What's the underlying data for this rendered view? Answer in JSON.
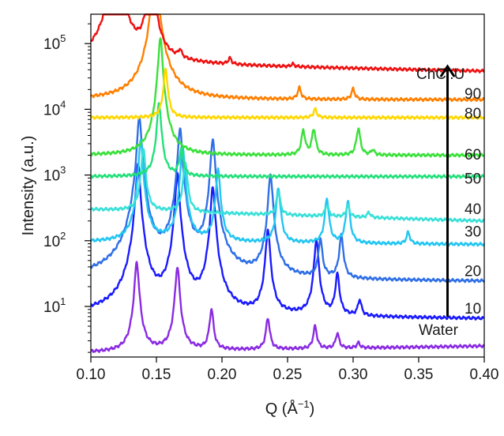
{
  "chart_data": {
    "type": "line",
    "title": "",
    "xlabel_prefix": "Q (Å",
    "xlabel_exp": "−1",
    "xlabel_suffix": ")",
    "ylabel": "Intensity (a.u.)",
    "xscale": "linear",
    "yscale": "log",
    "xlim": [
      0.1,
      0.4
    ],
    "ylim": [
      1.7,
      280000
    ],
    "grid": false,
    "x_ticks": [
      0.1,
      0.15,
      0.2,
      0.25,
      0.3,
      0.35,
      0.4
    ],
    "x_tick_labels": [
      "0.10",
      "0.15",
      "0.20",
      "0.25",
      "0.30",
      "0.35",
      "0.40"
    ],
    "y_ticks": [
      10,
      100,
      1000,
      10000,
      100000
    ],
    "y_tick_labels": [
      {
        "base": "10",
        "exp": "1"
      },
      {
        "base": "10",
        "exp": "2"
      },
      {
        "base": "10",
        "exp": "3"
      },
      {
        "base": "10",
        "exp": "4"
      },
      {
        "base": "10",
        "exp": "5"
      }
    ],
    "series_title": "ChCl:U",
    "arrow": {
      "x": 0.372,
      "from_y": 7,
      "to_y": 45000
    },
    "series": [
      {
        "label": "Water",
        "color": "#8a2be2",
        "label_y": 4.5,
        "x0": 0.1,
        "y0": 2.0,
        "x1": 0.4,
        "y1": 2.5,
        "peaks": [
          [
            0.135,
            22
          ],
          [
            0.166,
            18
          ],
          [
            0.192,
            3.2
          ],
          [
            0.235,
            2.0
          ],
          [
            0.271,
            1.2
          ],
          [
            0.288,
            0.7
          ],
          [
            0.304,
            0.2
          ]
        ]
      },
      {
        "label": "10",
        "color": "#1a1aff",
        "label_y": 9.5,
        "x0": 0.1,
        "y0": 7.5,
        "x1": 0.4,
        "y1": 6.5,
        "peaks": [
          [
            0.136,
            200
          ],
          [
            0.166,
            140
          ],
          [
            0.193,
            90
          ],
          [
            0.235,
            20
          ],
          [
            0.272,
            14
          ],
          [
            0.288,
            3.5
          ],
          [
            0.305,
            0.8
          ]
        ]
      },
      {
        "label": "20",
        "color": "#2f6fe6",
        "label_y": 35,
        "x0": 0.1,
        "y0": 26,
        "x1": 0.4,
        "y1": 24,
        "peaks": [
          [
            0.137,
            300
          ],
          [
            0.168,
            200
          ],
          [
            0.193,
            140
          ],
          [
            0.237,
            40
          ],
          [
            0.275,
            3.2
          ],
          [
            0.291,
            3.8
          ]
        ]
      },
      {
        "label": "30",
        "color": "#22c6f2",
        "label_y": 140,
        "x0": 0.1,
        "y0": 95,
        "x1": 0.4,
        "y1": 88,
        "peaks": [
          [
            0.138,
            35
          ],
          [
            0.17,
            28
          ],
          [
            0.197,
            12
          ],
          [
            0.243,
            6
          ],
          [
            0.28,
            3.8
          ],
          [
            0.296,
            3.5
          ],
          [
            0.342,
            0.5
          ]
        ]
      },
      {
        "label": "40",
        "color": "#38e0d8",
        "label_y": 310,
        "x0": 0.1,
        "y0": 300,
        "x1": 0.4,
        "y1": 200,
        "peaks": [
          [
            0.14,
            8
          ],
          [
            0.172,
            5
          ],
          [
            0.243,
            1.3
          ],
          [
            0.28,
            0.5
          ],
          [
            0.296,
            0.5
          ],
          [
            0.312,
            0.2
          ]
        ]
      },
      {
        "label": "50",
        "color": "#22e07a",
        "label_y": 900,
        "x0": 0.1,
        "y0": 950,
        "x1": 0.4,
        "y1": 950,
        "peaks": [
          [
            0.152,
            12
          ],
          [
            0.169,
            1.6
          ]
        ]
      },
      {
        "label": "60",
        "color": "#3ae03a",
        "label_y": 2100,
        "x0": 0.1,
        "y0": 2000,
        "x1": 0.4,
        "y1": 2000,
        "peaks": [
          [
            0.153,
            60
          ],
          [
            0.262,
            1.4
          ],
          [
            0.27,
            1.5
          ],
          [
            0.304,
            1.6
          ],
          [
            0.315,
            0.2
          ]
        ]
      },
      {
        "label": "80",
        "color": "#ffd700",
        "label_y": 8800,
        "x0": 0.1,
        "y0": 7500,
        "x1": 0.4,
        "y1": 7500,
        "peaks": [
          [
            0.157,
            4.5
          ],
          [
            0.271,
            0.35
          ]
        ]
      },
      {
        "label": "90",
        "color": "#ff7f00",
        "label_y": 17500,
        "x0": 0.1,
        "y0": 14000,
        "x1": 0.4,
        "y1": 14000,
        "peaks": [
          [
            0.149,
            170
          ],
          [
            0.259,
            0.5
          ],
          [
            0.3,
            0.45
          ]
        ]
      },
      {
        "label": "",
        "color": "#ee1111",
        "label_y": 0,
        "x0": 0.1,
        "y0": 50000,
        "x1": 0.4,
        "y1": 38000,
        "peaks": [
          [
            0.119,
            210
          ],
          [
            0.146,
            55
          ],
          [
            0.168,
            0.4
          ],
          [
            0.206,
            0.25
          ],
          [
            0.254,
            0.1
          ]
        ]
      }
    ]
  }
}
